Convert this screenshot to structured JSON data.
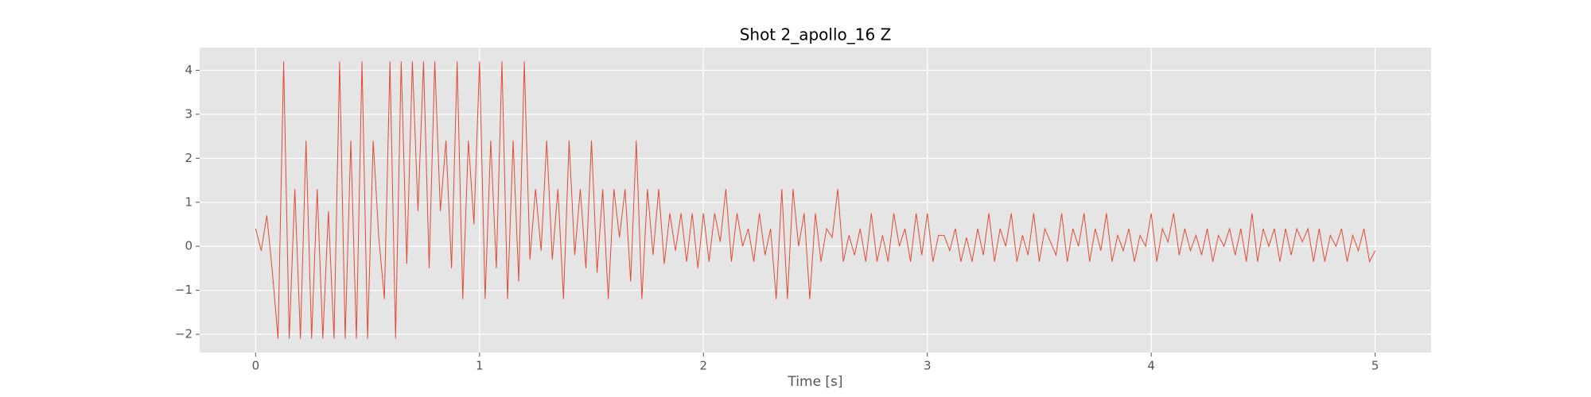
{
  "chart_data": {
    "type": "line",
    "title": "Shot 2_apollo_16 Z",
    "x_label": "Time [s]",
    "x": [
      0,
      0.025,
      0.05,
      0.075,
      0.1,
      0.125,
      0.15,
      0.175,
      0.2,
      0.225,
      0.25,
      0.275,
      0.3,
      0.325,
      0.35,
      0.375,
      0.4,
      0.425,
      0.45,
      0.475,
      0.5,
      0.525,
      0.55,
      0.575,
      0.6,
      0.625,
      0.65,
      0.675,
      0.7,
      0.725,
      0.75,
      0.775,
      0.8,
      0.825,
      0.85,
      0.875,
      0.9,
      0.925,
      0.95,
      0.975,
      1,
      1.025,
      1.05,
      1.075,
      1.1,
      1.125,
      1.15,
      1.175,
      1.2,
      1.225,
      1.25,
      1.275,
      1.3,
      1.325,
      1.35,
      1.375,
      1.4,
      1.425,
      1.45,
      1.475,
      1.5,
      1.525,
      1.55,
      1.575,
      1.6,
      1.625,
      1.65,
      1.675,
      1.7,
      1.725,
      1.75,
      1.775,
      1.8,
      1.825,
      1.85,
      1.875,
      1.9,
      1.925,
      1.95,
      1.975,
      2,
      2.025,
      2.05,
      2.075,
      2.1,
      2.125,
      2.15,
      2.175,
      2.2,
      2.225,
      2.25,
      2.275,
      2.3,
      2.325,
      2.35,
      2.375,
      2.4,
      2.425,
      2.45,
      2.475,
      2.5,
      2.525,
      2.55,
      2.575,
      2.6,
      2.625,
      2.65,
      2.675,
      2.7,
      2.725,
      2.75,
      2.775,
      2.8,
      2.825,
      2.85,
      2.875,
      2.9,
      2.925,
      2.95,
      2.975,
      3,
      3.025,
      3.05,
      3.075,
      3.1,
      3.125,
      3.15,
      3.175,
      3.2,
      3.225,
      3.25,
      3.275,
      3.3,
      3.325,
      3.35,
      3.375,
      3.4,
      3.425,
      3.45,
      3.475,
      3.5,
      3.525,
      3.55,
      3.575,
      3.6,
      3.625,
      3.65,
      3.675,
      3.7,
      3.725,
      3.75,
      3.775,
      3.8,
      3.825,
      3.85,
      3.875,
      3.9,
      3.925,
      3.95,
      3.975,
      4,
      4.025,
      4.05,
      4.075,
      4.1,
      4.125,
      4.15,
      4.175,
      4.2,
      4.225,
      4.25,
      4.275,
      4.3,
      4.325,
      4.35,
      4.375,
      4.4,
      4.425,
      4.45,
      4.475,
      4.5,
      4.525,
      4.55,
      4.575,
      4.6,
      4.625,
      4.65,
      4.675,
      4.7,
      4.725,
      4.75,
      4.775,
      4.8,
      4.825,
      4.85,
      4.875,
      4.9,
      4.925,
      4.95,
      4.975,
      5
    ],
    "values": [
      0.4,
      -0.1,
      0.7,
      -0.6,
      -2.1,
      4.2,
      -2.1,
      1.3,
      -2.1,
      2.4,
      -2.1,
      1.3,
      -2.1,
      0.8,
      -2.1,
      4.2,
      -2.1,
      2.4,
      -2.1,
      4.2,
      -2.1,
      2.4,
      0.2,
      -1.2,
      4.2,
      -2.1,
      4.2,
      -0.4,
      4.2,
      0.8,
      4.2,
      -0.5,
      4.2,
      0.8,
      2.4,
      -0.5,
      4.2,
      -1.2,
      2.4,
      0.5,
      4.2,
      -1.2,
      2.4,
      -0.5,
      4.2,
      -1.2,
      2.4,
      -0.8,
      4.2,
      -0.3,
      1.3,
      -0.1,
      2.4,
      -0.3,
      1.3,
      -1.2,
      2.4,
      -0.2,
      1.3,
      -0.5,
      2.4,
      -0.6,
      1.3,
      -1.2,
      1.3,
      0.2,
      1.3,
      -0.8,
      2.4,
      -1.2,
      1.3,
      -0.2,
      1.3,
      -0.4,
      0.75,
      -0.1,
      0.75,
      -0.35,
      0.75,
      -0.5,
      0.75,
      -0.35,
      0.75,
      0.1,
      1.3,
      -0.35,
      0.75,
      0,
      0.4,
      -0.35,
      0.75,
      -0.2,
      0.4,
      -1.2,
      1.3,
      -1.2,
      1.3,
      0,
      0.75,
      -1.2,
      0.75,
      -0.35,
      0.4,
      0.2,
      1.3,
      -0.35,
      0.25,
      -0.2,
      0.4,
      -0.35,
      0.75,
      -0.35,
      0.25,
      -0.35,
      0.75,
      0,
      0.4,
      -0.35,
      0.75,
      -0.2,
      0.75,
      -0.35,
      0.25,
      0.25,
      -0.1,
      0.4,
      -0.35,
      0.2,
      -0.35,
      0.4,
      -0.2,
      0.75,
      -0.35,
      0.4,
      0,
      0.75,
      -0.35,
      0.25,
      -0.2,
      0.75,
      -0.35,
      0.4,
      0.1,
      -0.2,
      0.75,
      -0.35,
      0.4,
      0,
      0.75,
      -0.35,
      0.4,
      -0.1,
      0.75,
      -0.35,
      0.25,
      -0.1,
      0.4,
      -0.35,
      0.25,
      0,
      0.75,
      -0.35,
      0.4,
      0.1,
      0.75,
      -0.2,
      0.4,
      -0.1,
      0.25,
      -0.2,
      0.4,
      -0.35,
      0.25,
      0,
      0.4,
      -0.2,
      0.4,
      -0.35,
      0.75,
      -0.35,
      0.4,
      0,
      0.4,
      -0.35,
      0.4,
      -0.2,
      0.4,
      0.1,
      0.4,
      -0.35,
      0.4,
      -0.35,
      0.25,
      0,
      0.4,
      -0.35,
      0.25,
      -0.1,
      0.4,
      -0.35,
      -0.1
    ],
    "color": "#E24A33",
    "xlim": [
      -0.25,
      5.25
    ],
    "xticks": [
      0,
      1,
      2,
      3,
      4,
      5
    ],
    "ylim": [
      -2.415,
      4.515
    ],
    "yticks": [
      {
        "value": -2,
        "label": "−2"
      },
      {
        "value": -1,
        "label": "−1"
      },
      0,
      1,
      2,
      3,
      4
    ],
    "grid": true
  }
}
